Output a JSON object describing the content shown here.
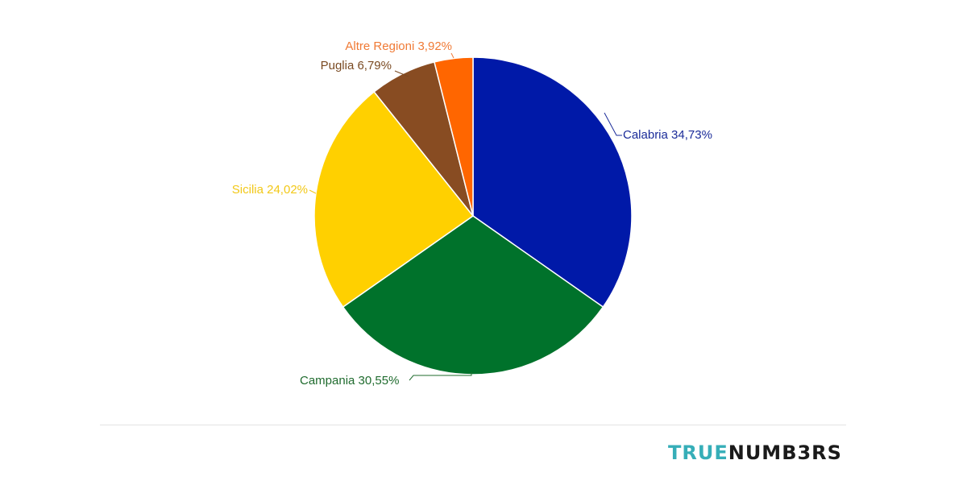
{
  "chart_data": {
    "type": "pie",
    "title": "",
    "slices": [
      {
        "label": "Calabria",
        "value": 34.73,
        "display": "Calabria 34,73%",
        "color": "#0019a8"
      },
      {
        "label": "Campania",
        "value": 30.55,
        "display": "Campania 30,55%",
        "color": "#00722b"
      },
      {
        "label": "Sicilia",
        "value": 24.02,
        "display": "Sicilia 24,02%",
        "color": "#ffd000"
      },
      {
        "label": "Puglia",
        "value": 6.79,
        "display": "Puglia 6,79%",
        "color": "#884c22"
      },
      {
        "label": "Altre Regioni",
        "value": 3.92,
        "display": "Altre Regioni 3,92%",
        "color": "#ff6600"
      }
    ],
    "label_colors": {
      "Calabria": "#1a2b99",
      "Campania": "#1f6b2e",
      "Sicilia": "#f2c818",
      "Puglia": "#7a4a22",
      "Altre Regioni": "#f07a35"
    }
  },
  "brand": {
    "part1": "TRUE",
    "part2": "NUMB3RS"
  }
}
